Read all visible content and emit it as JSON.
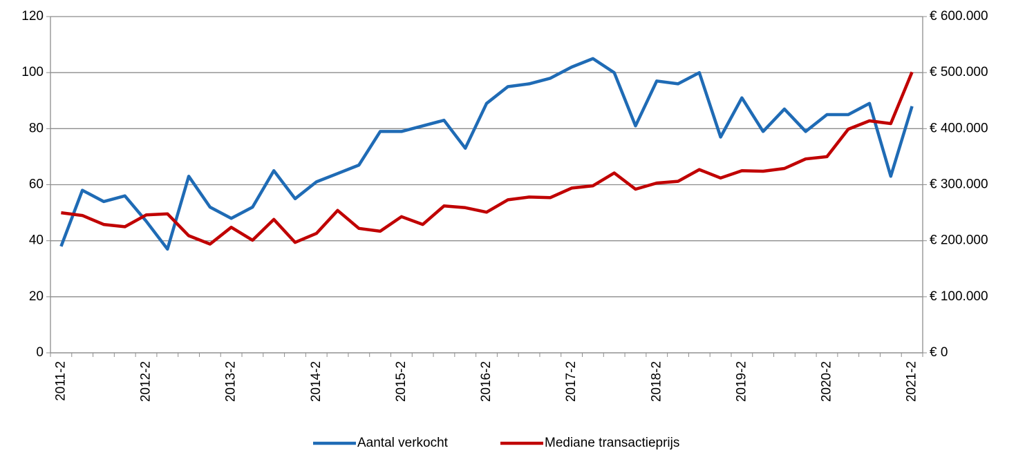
{
  "chart_data": {
    "type": "line",
    "categories": [
      "2011-2",
      null,
      null,
      null,
      "2012-2",
      null,
      null,
      null,
      "2013-2",
      null,
      null,
      null,
      "2014-2",
      null,
      null,
      null,
      "2015-2",
      null,
      null,
      null,
      "2016-2",
      null,
      null,
      null,
      "2017-2",
      null,
      null,
      null,
      "2018-2",
      null,
      null,
      null,
      "2019-2",
      null,
      null,
      null,
      "2020-2",
      null,
      null,
      null,
      "2021-2"
    ],
    "series": [
      {
        "name": "Aantal verkocht",
        "color": "#1f6bb5",
        "values": [
          38,
          58,
          54,
          56,
          47,
          37,
          63,
          52,
          48,
          52,
          65,
          55,
          61,
          64,
          67,
          79,
          79,
          81,
          83,
          73,
          89,
          95,
          96,
          98,
          102,
          105,
          100,
          81,
          97,
          96,
          100,
          77,
          91,
          79,
          87,
          79,
          85,
          85,
          89,
          63,
          88
        ]
      },
      {
        "name": "Mediane transactieprijs",
        "color": "#c00000",
        "axis": "y2",
        "values": [
          250000,
          245000,
          229000,
          225000,
          246000,
          248000,
          209000,
          194000,
          224000,
          201000,
          238000,
          197000,
          213000,
          254000,
          222000,
          217000,
          243000,
          229000,
          262000,
          259000,
          251000,
          273000,
          278000,
          277000,
          294000,
          298000,
          321000,
          292000,
          303000,
          306000,
          327000,
          312000,
          325000,
          324000,
          329000,
          346000,
          350000,
          399000,
          414000,
          409000,
          501000
        ]
      }
    ],
    "ylim": [
      0,
      120
    ],
    "yticks": [
      0,
      20,
      40,
      60,
      80,
      100,
      120
    ],
    "y2lim": [
      0,
      600000
    ],
    "y2ticks": [
      {
        "value": 0,
        "label": "€ 0"
      },
      {
        "value": 100000,
        "label": "€ 100.000"
      },
      {
        "value": 200000,
        "label": "€ 200.000"
      },
      {
        "value": 300000,
        "label": "€ 300.000"
      },
      {
        "value": 400000,
        "label": "€ 400.000"
      },
      {
        "value": 500000,
        "label": "€ 500.000"
      },
      {
        "value": 600000,
        "label": "€ 600.000"
      }
    ],
    "grid": true,
    "legend": "bottom"
  }
}
